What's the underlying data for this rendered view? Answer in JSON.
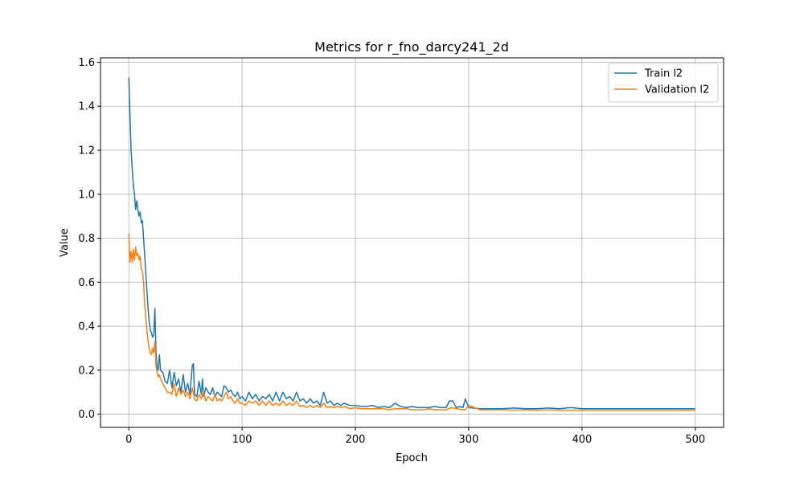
{
  "chart_data": {
    "type": "line",
    "title": "Metrics for r_fno_darcy241_2d",
    "xlabel": "Epoch",
    "ylabel": "Value",
    "xlim": [
      -25,
      525
    ],
    "ylim": [
      -0.06,
      1.62
    ],
    "xticks": [
      0,
      100,
      200,
      300,
      400,
      500
    ],
    "yticks": [
      0.0,
      0.2,
      0.4,
      0.6,
      0.8,
      1.0,
      1.2,
      1.4,
      1.6
    ],
    "grid": true,
    "legend": "top-right",
    "series": [
      {
        "name": "Train l2",
        "color": "#1f77b4",
        "x": [
          0,
          2,
          4,
          5,
          6,
          7,
          8,
          9,
          10,
          11,
          12,
          13,
          14,
          15,
          16,
          17,
          18,
          19,
          20,
          21,
          22,
          23,
          24,
          25,
          26,
          27,
          28,
          30,
          32,
          34,
          36,
          38,
          40,
          42,
          44,
          46,
          48,
          50,
          52,
          54,
          56,
          57,
          58,
          60,
          62,
          64,
          65,
          66,
          68,
          70,
          72,
          74,
          76,
          78,
          80,
          82,
          84,
          86,
          88,
          90,
          92,
          94,
          96,
          98,
          100,
          103,
          106,
          109,
          112,
          115,
          118,
          121,
          124,
          127,
          130,
          133,
          136,
          139,
          142,
          145,
          148,
          151,
          154,
          157,
          160,
          163,
          166,
          169,
          172,
          175,
          178,
          181,
          184,
          187,
          190,
          195,
          200,
          205,
          210,
          215,
          220,
          225,
          230,
          235,
          240,
          245,
          250,
          255,
          260,
          265,
          270,
          275,
          280,
          283,
          286,
          289,
          292,
          295,
          297,
          300,
          310,
          320,
          330,
          340,
          350,
          360,
          370,
          380,
          390,
          400,
          410,
          420,
          430,
          440,
          450,
          460,
          470,
          480,
          490,
          500
        ],
        "values": [
          1.53,
          1.2,
          1.04,
          1.0,
          0.93,
          0.97,
          0.93,
          0.9,
          0.92,
          0.87,
          0.88,
          0.8,
          0.72,
          0.64,
          0.56,
          0.48,
          0.42,
          0.38,
          0.37,
          0.35,
          0.36,
          0.48,
          0.28,
          0.21,
          0.2,
          0.27,
          0.2,
          0.19,
          0.15,
          0.14,
          0.2,
          0.12,
          0.19,
          0.13,
          0.16,
          0.1,
          0.18,
          0.1,
          0.14,
          0.09,
          0.22,
          0.23,
          0.09,
          0.08,
          0.15,
          0.09,
          0.16,
          0.08,
          0.12,
          0.1,
          0.09,
          0.12,
          0.08,
          0.1,
          0.09,
          0.08,
          0.13,
          0.12,
          0.1,
          0.11,
          0.09,
          0.08,
          0.1,
          0.07,
          0.08,
          0.06,
          0.1,
          0.07,
          0.09,
          0.06,
          0.08,
          0.07,
          0.09,
          0.06,
          0.1,
          0.06,
          0.1,
          0.07,
          0.08,
          0.06,
          0.1,
          0.06,
          0.07,
          0.05,
          0.07,
          0.05,
          0.06,
          0.04,
          0.1,
          0.05,
          0.06,
          0.04,
          0.05,
          0.04,
          0.05,
          0.04,
          0.04,
          0.035,
          0.035,
          0.04,
          0.03,
          0.035,
          0.03,
          0.05,
          0.035,
          0.03,
          0.035,
          0.03,
          0.03,
          0.03,
          0.035,
          0.03,
          0.03,
          0.06,
          0.06,
          0.03,
          0.035,
          0.03,
          0.07,
          0.03,
          0.025,
          0.025,
          0.025,
          0.028,
          0.025,
          0.025,
          0.028,
          0.025,
          0.03,
          0.025,
          0.025,
          0.025,
          0.025,
          0.025,
          0.025,
          0.025,
          0.025,
          0.025,
          0.025,
          0.025
        ]
      },
      {
        "name": "Validation l2",
        "color": "#ff7f0e",
        "x": [
          0,
          1,
          2,
          3,
          4,
          5,
          6,
          7,
          8,
          9,
          10,
          11,
          12,
          13,
          14,
          15,
          16,
          17,
          18,
          19,
          20,
          21,
          22,
          23,
          24,
          25,
          26,
          27,
          28,
          30,
          32,
          34,
          36,
          38,
          40,
          42,
          44,
          46,
          48,
          50,
          52,
          54,
          56,
          58,
          60,
          62,
          64,
          66,
          68,
          70,
          72,
          74,
          76,
          78,
          80,
          82,
          84,
          86,
          88,
          90,
          92,
          94,
          96,
          98,
          100,
          103,
          106,
          109,
          112,
          115,
          118,
          121,
          124,
          127,
          130,
          133,
          136,
          139,
          142,
          145,
          148,
          151,
          154,
          157,
          160,
          163,
          166,
          169,
          172,
          175,
          178,
          181,
          184,
          187,
          190,
          195,
          200,
          205,
          210,
          215,
          220,
          225,
          230,
          235,
          240,
          245,
          250,
          255,
          260,
          265,
          270,
          275,
          280,
          285,
          290,
          295,
          297,
          300,
          310,
          320,
          330,
          340,
          350,
          360,
          370,
          380,
          390,
          400,
          410,
          420,
          430,
          440,
          450,
          460,
          470,
          480,
          490,
          500
        ],
        "values": [
          0.82,
          0.69,
          0.74,
          0.69,
          0.75,
          0.7,
          0.76,
          0.72,
          0.73,
          0.7,
          0.72,
          0.66,
          0.65,
          0.6,
          0.5,
          0.44,
          0.38,
          0.33,
          0.3,
          0.28,
          0.27,
          0.3,
          0.28,
          0.33,
          0.22,
          0.19,
          0.17,
          0.18,
          0.16,
          0.14,
          0.12,
          0.1,
          0.1,
          0.09,
          0.14,
          0.08,
          0.12,
          0.09,
          0.11,
          0.08,
          0.1,
          0.07,
          0.12,
          0.07,
          0.06,
          0.09,
          0.07,
          0.1,
          0.06,
          0.08,
          0.07,
          0.06,
          0.09,
          0.06,
          0.07,
          0.06,
          0.08,
          0.1,
          0.07,
          0.08,
          0.06,
          0.05,
          0.07,
          0.05,
          0.05,
          0.04,
          0.06,
          0.05,
          0.06,
          0.04,
          0.06,
          0.04,
          0.06,
          0.04,
          0.05,
          0.04,
          0.06,
          0.04,
          0.05,
          0.04,
          0.06,
          0.035,
          0.04,
          0.03,
          0.04,
          0.03,
          0.04,
          0.03,
          0.05,
          0.03,
          0.035,
          0.03,
          0.035,
          0.03,
          0.035,
          0.025,
          0.03,
          0.025,
          0.025,
          0.025,
          0.025,
          0.025,
          0.02,
          0.025,
          0.025,
          0.025,
          0.02,
          0.02,
          0.02,
          0.025,
          0.02,
          0.02,
          0.02,
          0.03,
          0.025,
          0.02,
          0.02,
          0.04,
          0.02,
          0.02,
          0.02,
          0.018,
          0.02,
          0.018,
          0.02,
          0.018,
          0.018,
          0.018,
          0.018,
          0.018,
          0.018,
          0.018,
          0.018,
          0.018,
          0.018,
          0.018,
          0.018,
          0.018
        ]
      }
    ]
  }
}
